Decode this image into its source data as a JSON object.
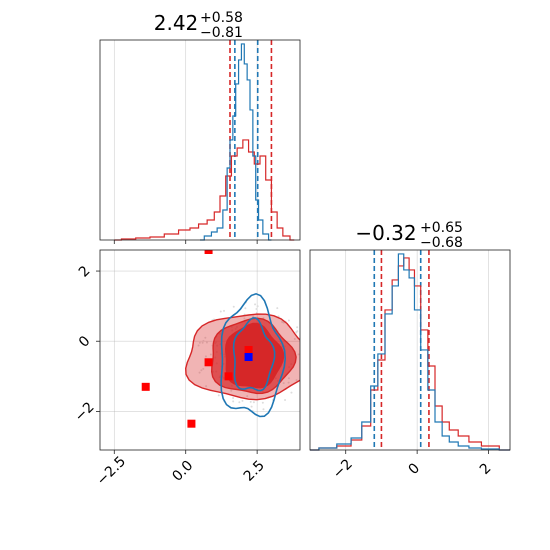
{
  "colors": {
    "primary": "#d62728",
    "secondary": "#1f77b4",
    "scatter": "#dddddd",
    "grid": "#b0b0b0",
    "marker_blue": "#0000ff",
    "marker_red": "#ff0000"
  },
  "chart_data": [
    {
      "type": "histogram",
      "panel": "top-left",
      "title_value": "2.42",
      "title_sup": "+0.58",
      "title_sub": "−0.81",
      "xlim": [
        -3.0,
        4.0
      ],
      "grid": true,
      "series": [
        {
          "color": "#d62728",
          "x": [
            -2.5,
            -2.0,
            -1.5,
            -1.0,
            -0.5,
            0.0,
            0.3,
            0.6,
            0.9,
            1.1,
            1.3,
            1.5,
            1.7,
            1.9,
            2.1,
            2.3,
            2.5,
            2.7,
            2.9,
            3.1,
            3.3,
            3.5,
            3.8
          ],
          "y": [
            0.0,
            0.005,
            0.01,
            0.015,
            0.03,
            0.05,
            0.06,
            0.08,
            0.1,
            0.14,
            0.22,
            0.32,
            0.42,
            0.46,
            0.5,
            0.44,
            0.38,
            0.42,
            0.3,
            0.14,
            0.06,
            0.02,
            0.0
          ]
        },
        {
          "color": "#1f77b4",
          "x": [
            0.5,
            0.8,
            1.0,
            1.2,
            1.4,
            1.5,
            1.6,
            1.7,
            1.8,
            1.9,
            2.0,
            2.1,
            2.2,
            2.3,
            2.4,
            2.5,
            2.6,
            2.8,
            3.0
          ],
          "y": [
            0.0,
            0.02,
            0.04,
            0.06,
            0.15,
            0.36,
            0.5,
            0.62,
            0.78,
            0.9,
            0.98,
            0.88,
            0.8,
            0.65,
            0.42,
            0.2,
            0.1,
            0.03,
            0.0
          ]
        }
      ],
      "quantile_lines": [
        {
          "x": 1.55,
          "color": "#d62728"
        },
        {
          "x": 1.72,
          "color": "#1f77b4"
        },
        {
          "x": 2.52,
          "color": "#1f77b4"
        },
        {
          "x": 3.0,
          "color": "#d62728"
        }
      ]
    },
    {
      "type": "contour",
      "panel": "bottom-left",
      "xlim": [
        -3.0,
        4.0
      ],
      "ylim": [
        -3.1,
        2.6
      ],
      "grid": true,
      "x_ticks": [
        -2.5,
        0.0,
        2.5
      ],
      "x_tick_labels": [
        "−2.5",
        "0.0",
        "2.5"
      ],
      "y_ticks": [
        -2,
        0,
        2
      ],
      "y_tick_labels": [
        "−2",
        "0",
        "2"
      ],
      "red_contours": [
        {
          "center": [
            2.2,
            -0.45
          ],
          "rx": 2.2,
          "ry": 1.2,
          "fill_opacity": 0.35
        },
        {
          "center": [
            2.3,
            -0.45
          ],
          "rx": 1.45,
          "ry": 1.05,
          "fill_opacity": 0.7
        },
        {
          "center": [
            2.35,
            -0.45
          ],
          "rx": 1.0,
          "ry": 0.9,
          "fill_opacity": 1.0
        }
      ],
      "blue_contours": [
        {
          "center": [
            2.3,
            -0.5
          ],
          "rx": 1.1,
          "ry": 1.65
        },
        {
          "center": [
            2.35,
            -0.45
          ],
          "rx": 0.7,
          "ry": 1.0
        }
      ],
      "red_markers": [
        [
          0.8,
          2.6
        ],
        [
          -1.4,
          -1.3
        ],
        [
          0.8,
          -0.6
        ],
        [
          0.2,
          -2.35
        ],
        [
          1.5,
          -1.0
        ],
        [
          2.2,
          -0.25
        ]
      ],
      "blue_marker": [
        2.2,
        -0.45
      ]
    },
    {
      "type": "histogram",
      "panel": "bottom-right",
      "title_value": "−0.32",
      "title_sup": "+0.65",
      "title_sub": "−0.68",
      "xlim": [
        -3.0,
        2.6
      ],
      "grid": true,
      "x_ticks": [
        -2,
        0,
        2
      ],
      "x_tick_labels": [
        "−2",
        "0",
        "2"
      ],
      "series": [
        {
          "color": "#d62728",
          "x": [
            -3.0,
            -2.5,
            -2.0,
            -1.7,
            -1.4,
            -1.2,
            -1.0,
            -0.8,
            -0.6,
            -0.45,
            -0.3,
            -0.15,
            0.0,
            0.2,
            0.4,
            0.6,
            0.8,
            1.0,
            1.3,
            1.6,
            2.0,
            2.6
          ],
          "y": [
            0.0,
            0.01,
            0.02,
            0.05,
            0.12,
            0.3,
            0.45,
            0.7,
            0.85,
            0.92,
            0.96,
            0.9,
            0.82,
            0.6,
            0.42,
            0.22,
            0.14,
            0.1,
            0.07,
            0.04,
            0.02,
            0.0
          ]
        },
        {
          "color": "#1f77b4",
          "x": [
            -3.0,
            -2.5,
            -2.0,
            -1.7,
            -1.4,
            -1.2,
            -1.0,
            -0.8,
            -0.6,
            -0.45,
            -0.3,
            -0.15,
            0.0,
            0.2,
            0.4,
            0.6,
            0.8,
            1.0,
            1.3,
            1.6,
            2.0,
            2.6
          ],
          "y": [
            0.0,
            0.01,
            0.03,
            0.06,
            0.14,
            0.32,
            0.48,
            0.68,
            0.82,
            0.98,
            0.9,
            0.86,
            0.7,
            0.5,
            0.3,
            0.14,
            0.07,
            0.04,
            0.02,
            0.01,
            0.005,
            0.0
          ]
        }
      ],
      "quantile_lines": [
        {
          "x": -1.2,
          "color": "#1f77b4"
        },
        {
          "x": -1.0,
          "color": "#d62728"
        },
        {
          "x": 0.1,
          "color": "#1f77b4"
        },
        {
          "x": 0.33,
          "color": "#d62728"
        }
      ]
    }
  ]
}
